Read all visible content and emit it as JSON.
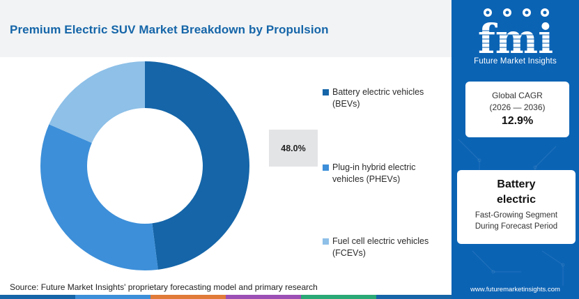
{
  "title": "Premium Electric SUV Market Breakdown by Propulsion",
  "chart_data": {
    "type": "pie",
    "subtype": "donut",
    "categories": [
      "Battery electric vehicles (BEVs)",
      "Plug-in hybrid electric vehicles (PHEVs)",
      "Fuel cell electric vehicles (FCEVs)"
    ],
    "values": [
      48.0,
      33.5,
      18.5
    ],
    "colors": [
      "#1565a8",
      "#3d8fd9",
      "#8ec0e8"
    ],
    "callout_label": "48.0%",
    "legend": [
      {
        "label": "Battery electric vehicles\n(BEVs)",
        "color": "#1565a8"
      },
      {
        "label": "Plug-in hybrid electric\nvehicles (PHEVs)",
        "color": "#3d8fd9"
      },
      {
        "label": "Fuel cell electric vehicles\n(FCEVs)",
        "color": "#8ec0e8"
      }
    ],
    "legend_position": "right"
  },
  "source": "Source: Future Market Insights' proprietary forecasting model and primary research",
  "bottom_strip_colors": [
    "#1565a8",
    "#3d8fd9",
    "#e07b39",
    "#9c4fb5",
    "#2aa876",
    "#1565a8"
  ],
  "panel": {
    "brand_logo_text": "fmi",
    "brand_name": "Future Market Insights",
    "cagr_label": "Global CAGR",
    "cagr_range": "(2026 — 2036)",
    "cagr_value": "12.9%",
    "segment_title": "Battery electric",
    "segment_subtitle_1": "Fast-Growing Segment",
    "segment_subtitle_2": "During Forecast Period",
    "url": "www.futuremarketinsights.com",
    "background_color": "#0b63b4"
  }
}
